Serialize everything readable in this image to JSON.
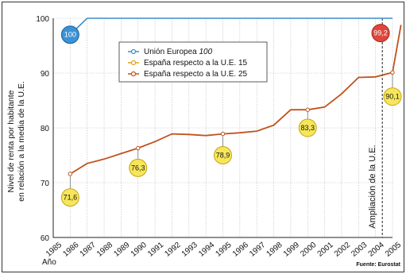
{
  "chart_data": {
    "type": "line",
    "title": "",
    "ylabel": "Nivel de renta por habitante en relación a la media de la U.E.",
    "xlabel": "Año",
    "source": "Fuente: Eurostat",
    "annotation": "Ampliación de la U.E.",
    "ylim": [
      60,
      100
    ],
    "yticks": [
      60,
      70,
      80,
      90,
      100
    ],
    "grid": true,
    "legend_placement": "top-center",
    "categories": [
      "1985",
      "1986",
      "1987",
      "1988",
      "1989",
      "1990",
      "1991",
      "1992",
      "1993",
      "1994",
      "1995",
      "1996",
      "1997",
      "1998",
      "1999",
      "2000",
      "2001",
      "2002",
      "2003",
      "2004",
      "2005"
    ],
    "series": [
      {
        "name": "Unión Europea",
        "name_suffix": "100",
        "color": "#3a8fc9",
        "points": [
          [
            1986,
            97
          ],
          [
            1987,
            100
          ],
          [
            2005,
            100
          ]
        ]
      },
      {
        "name": "España respecto a la U.E. 15",
        "color": "#e0a21a",
        "points": []
      },
      {
        "name": "España respecto a la U.E. 25",
        "color": "#c0531e",
        "points": [
          [
            1986,
            71.6
          ],
          [
            1987,
            73.5
          ],
          [
            1988,
            74.3
          ],
          [
            1989,
            75.3
          ],
          [
            1990,
            76.3
          ],
          [
            1991,
            77.5
          ],
          [
            1992,
            78.9
          ],
          [
            1993,
            78.8
          ],
          [
            1994,
            78.6
          ],
          [
            1995,
            78.9
          ],
          [
            1996,
            79.1
          ],
          [
            1997,
            79.4
          ],
          [
            1998,
            80.5
          ],
          [
            1999,
            83.3
          ],
          [
            2000,
            83.3
          ],
          [
            2001,
            83.8
          ],
          [
            2002,
            86.2
          ],
          [
            2003,
            89.2
          ],
          [
            2004,
            89.3
          ],
          [
            2005,
            90.1
          ],
          [
            2005.5,
            98.8
          ]
        ]
      }
    ],
    "data_labels": [
      {
        "text": "100",
        "at": [
          1986,
          97
        ],
        "offset": [
          0,
          0
        ],
        "style": "blue"
      },
      {
        "text": "71,6",
        "at": [
          1986,
          71.6
        ],
        "offset": [
          0,
          -4.3
        ],
        "style": "yellow"
      },
      {
        "text": "76,3",
        "at": [
          1990,
          76.3
        ],
        "offset": [
          0,
          -3.6
        ],
        "style": "yellow"
      },
      {
        "text": "78,9",
        "at": [
          1995,
          78.9
        ],
        "offset": [
          0,
          -3.9
        ],
        "style": "yellow"
      },
      {
        "text": "83,3",
        "at": [
          2000,
          83.3
        ],
        "offset": [
          0,
          -3.3
        ],
        "style": "yellow"
      },
      {
        "text": "90,1",
        "at": [
          2005,
          90.1
        ],
        "offset": [
          0,
          -4.4
        ],
        "style": "yellow"
      },
      {
        "text": "99,2",
        "at": [
          2004.3,
          97.3
        ],
        "offset": [
          0,
          0
        ],
        "style": "red"
      }
    ]
  }
}
